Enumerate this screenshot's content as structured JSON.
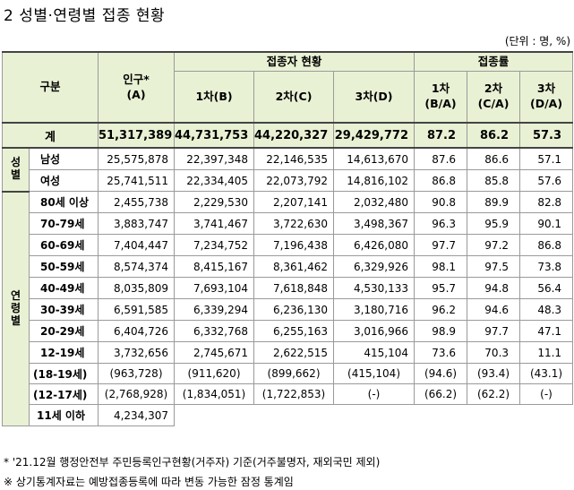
{
  "title": "2 성별·연령별 접종 현황",
  "unit": "(단위 : 명, %)",
  "header": {
    "category": "구분",
    "population": "인구*",
    "population_sub": "(A)",
    "vaccinated_group": "접종자 현황",
    "rate_group": "접종률",
    "dose1": "1차(B)",
    "dose2": "2차(C)",
    "dose3": "3차(D)",
    "rate1_a": "1차",
    "rate1_b": "(B/A)",
    "rate2_a": "2차",
    "rate2_b": "(C/A)",
    "rate3_a": "3차",
    "rate3_b": "(D/A)"
  },
  "total": {
    "label": "계",
    "pop": "51,317,389",
    "d1": "44,731,753",
    "d2": "44,220,327",
    "d3": "29,429,772",
    "r1": "87.2",
    "r2": "86.2",
    "r3": "57.3"
  },
  "sex_label": [
    "성",
    "별"
  ],
  "age_label": [
    "연",
    "령",
    "별"
  ],
  "sex_rows": [
    {
      "label": "남성",
      "pop": "25,575,878",
      "d1": "22,397,348",
      "d2": "22,146,535",
      "d3": "14,613,670",
      "r1": "87.6",
      "r2": "86.6",
      "r3": "57.1"
    },
    {
      "label": "여성",
      "pop": "25,741,511",
      "d1": "22,334,405",
      "d2": "22,073,792",
      "d3": "14,816,102",
      "r1": "86.8",
      "r2": "85.8",
      "r3": "57.6"
    }
  ],
  "age_rows": [
    {
      "label": "80세 이상",
      "pop": "2,455,738",
      "d1": "2,229,530",
      "d2": "2,207,141",
      "d3": "2,032,480",
      "r1": "90.8",
      "r2": "89.9",
      "r3": "82.8"
    },
    {
      "label": "70-79세",
      "pop": "3,883,747",
      "d1": "3,741,467",
      "d2": "3,722,630",
      "d3": "3,498,367",
      "r1": "96.3",
      "r2": "95.9",
      "r3": "90.1"
    },
    {
      "label": "60-69세",
      "pop": "7,404,447",
      "d1": "7,234,752",
      "d2": "7,196,438",
      "d3": "6,426,080",
      "r1": "97.7",
      "r2": "97.2",
      "r3": "86.8"
    },
    {
      "label": "50-59세",
      "pop": "8,574,374",
      "d1": "8,415,167",
      "d2": "8,361,462",
      "d3": "6,329,926",
      "r1": "98.1",
      "r2": "97.5",
      "r3": "73.8"
    },
    {
      "label": "40-49세",
      "pop": "8,035,809",
      "d1": "7,693,104",
      "d2": "7,618,848",
      "d3": "4,530,133",
      "r1": "95.7",
      "r2": "94.8",
      "r3": "56.4"
    },
    {
      "label": "30-39세",
      "pop": "6,591,585",
      "d1": "6,339,294",
      "d2": "6,236,130",
      "d3": "3,180,716",
      "r1": "96.2",
      "r2": "94.6",
      "r3": "48.3"
    },
    {
      "label": "20-29세",
      "pop": "6,404,726",
      "d1": "6,332,768",
      "d2": "6,255,163",
      "d3": "3,016,966",
      "r1": "98.9",
      "r2": "97.7",
      "r3": "47.1"
    },
    {
      "label": "12-19세",
      "pop": "3,732,656",
      "d1": "2,745,671",
      "d2": "2,622,515",
      "d3": "415,104",
      "r1": "73.6",
      "r2": "70.3",
      "r3": "11.1"
    }
  ],
  "paren_rows": [
    {
      "label": "(18-19세)",
      "pop": "(963,728)",
      "d1": "(911,620)",
      "d2": "(899,662)",
      "d3": "(415,104)",
      "r1": "(94.6)",
      "r2": "(93.4)",
      "r3": "(43.1)"
    },
    {
      "label": "(12-17세)",
      "pop": "(2,768,928)",
      "d1": "(1,834,051)",
      "d2": "(1,722,853)",
      "d3": "(-)",
      "r1": "(66.2)",
      "r2": "(62.2)",
      "r3": "(-)"
    }
  ],
  "under11": {
    "label": "11세 이하",
    "pop": "4,234,307"
  },
  "footnotes": [
    "* '21.12월 행정안전부 주민등록인구현황(거주자) 기준(거주불명자, 재외국민 제외)",
    "※ 상기통계자료는 예방접종등록에 따라 변동 가능한 잠정 통계임"
  ]
}
